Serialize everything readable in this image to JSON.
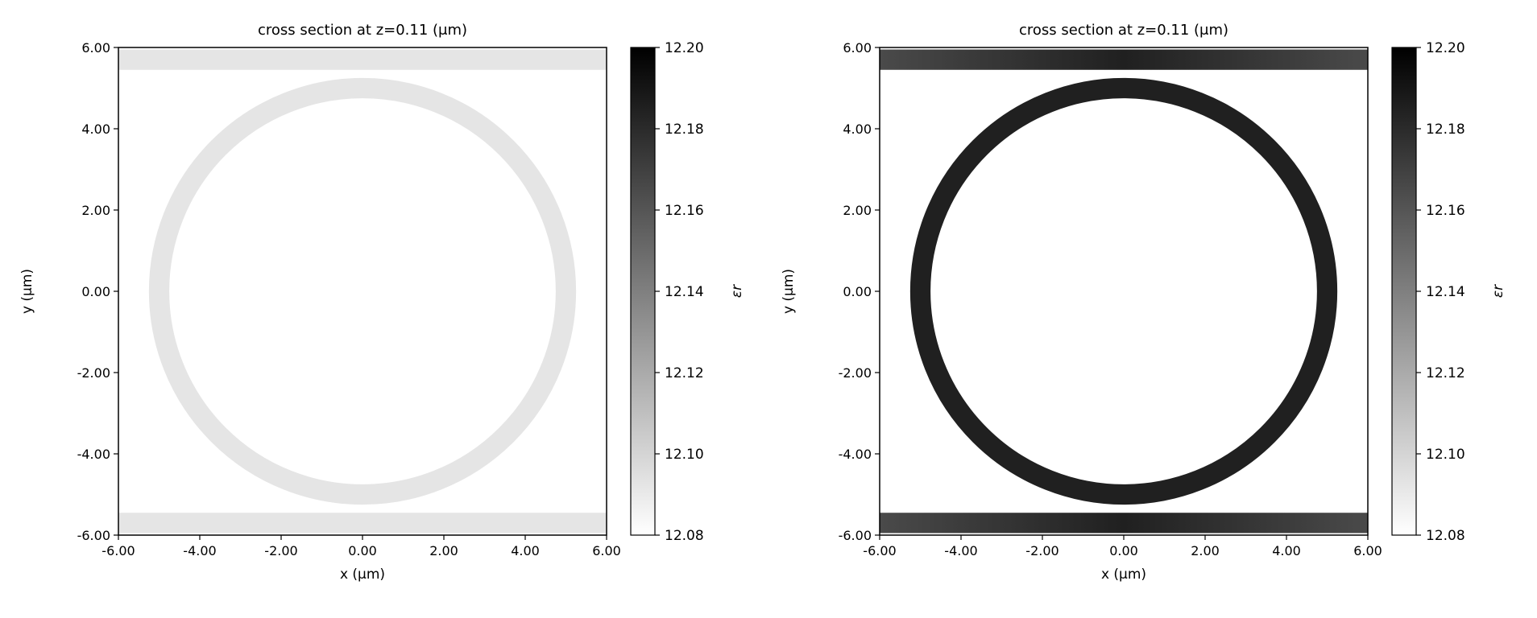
{
  "chart_data": [
    {
      "type": "heatmap",
      "title": "cross section at z=0.11 (μm)",
      "xlabel": "x (μm)",
      "ylabel": "y (μm)",
      "xlim": [
        -6,
        6
      ],
      "ylim": [
        -6,
        6
      ],
      "x_ticks": [
        "-6.00",
        "-4.00",
        "-2.00",
        "0.00",
        "2.00",
        "4.00",
        "6.00"
      ],
      "y_ticks": [
        "6.00",
        "4.00",
        "2.00",
        "0.00",
        "-2.00",
        "-4.00",
        "-6.00"
      ],
      "grid": false,
      "colormap": "gray_r",
      "colorbar": {
        "label": "εr",
        "range": [
          12.08,
          12.2
        ],
        "ticks": [
          "12.20",
          "12.18",
          "12.16",
          "12.14",
          "12.12",
          "12.10",
          "12.08"
        ]
      },
      "structures": [
        {
          "shape": "ring",
          "center": [
            0,
            0
          ],
          "inner_radius": 4.75,
          "outer_radius": 5.25,
          "eps_r": 12.092
        },
        {
          "shape": "waveguide",
          "y_range": [
            5.45,
            5.95
          ],
          "eps_r": 12.092
        },
        {
          "shape": "waveguide",
          "y_range": [
            -5.95,
            -5.45
          ],
          "eps_r": 12.092
        }
      ]
    },
    {
      "type": "heatmap",
      "title": "cross section at z=0.11 (μm)",
      "xlabel": "x (μm)",
      "ylabel": "y (μm)",
      "xlim": [
        -6,
        6
      ],
      "ylim": [
        -6,
        6
      ],
      "x_ticks": [
        "-6.00",
        "-4.00",
        "-2.00",
        "0.00",
        "2.00",
        "4.00",
        "6.00"
      ],
      "y_ticks": [
        "6.00",
        "4.00",
        "2.00",
        "0.00",
        "-2.00",
        "-4.00",
        "-6.00"
      ],
      "grid": false,
      "colormap": "gray_r",
      "colorbar": {
        "label": "εr",
        "range": [
          12.08,
          12.2
        ],
        "ticks": [
          "12.20",
          "12.18",
          "12.16",
          "12.14",
          "12.12",
          "12.10",
          "12.08"
        ]
      },
      "structures": [
        {
          "shape": "ring",
          "center": [
            0,
            0
          ],
          "inner_radius": 4.75,
          "outer_radius": 5.25,
          "eps_r": 12.185
        },
        {
          "shape": "waveguide",
          "y_range": [
            5.45,
            5.95
          ],
          "eps_r_edges": 12.165,
          "eps_r_center": 12.185
        },
        {
          "shape": "waveguide",
          "y_range": [
            -5.95,
            -5.45
          ],
          "eps_r_edges": 12.165,
          "eps_r_center": 12.185
        }
      ]
    }
  ]
}
